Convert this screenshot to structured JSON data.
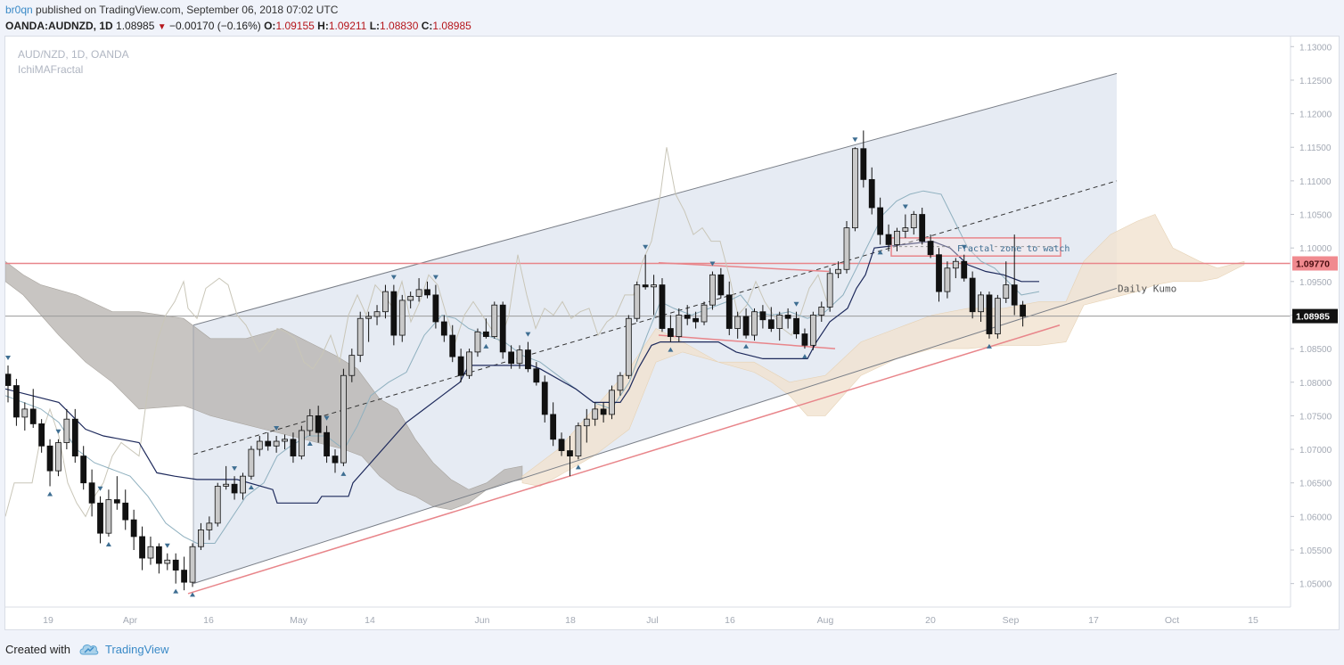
{
  "header": {
    "author": "br0qn",
    "published_text": " published on TradingView.com, September 06, 2018 07:02 UTC",
    "symbol": "OANDA:AUDNZD, 1D",
    "last": "1.08985",
    "change": "−0.00170 (−0.16%)",
    "open_label": "O:",
    "open": "1.09155",
    "high_label": "H:",
    "high": "1.09211",
    "low_label": "L:",
    "low": "1.08830",
    "close_label": "C:",
    "close": "1.08985"
  },
  "chart_overlay": {
    "symbol_line": "AUD/NZD, 1D, OANDA",
    "indicator_line": "IchiMAFractal"
  },
  "footer": {
    "created_with": "Created with",
    "brand": "TradingView"
  },
  "colors": {
    "up_candle": "#c9c9c9",
    "down_candle": "#111111",
    "channel_fill": "#e6ebf3",
    "kumo_bear": "#b5b2ad",
    "kumo_bull": "#f1e2cf",
    "red_line": "#e8858a",
    "tenkan": "#8fb0bf",
    "kijun": "#1e2a5c",
    "chikou": "#c9c6b8",
    "fractal": "#3e6e92"
  },
  "chart_data": {
    "type": "candlestick",
    "title": "AUD/NZD, 1D, OANDA",
    "price_axis": {
      "ticks": [
        "1.13000",
        "1.12500",
        "1.12000",
        "1.11500",
        "1.11000",
        "1.10500",
        "1.10000",
        "1.09500",
        "1.09000",
        "1.08500",
        "1.08000",
        "1.07500",
        "1.07000",
        "1.06500",
        "1.06000",
        "1.05500",
        "1.05000"
      ],
      "range": [
        1.0465,
        1.1315
      ]
    },
    "time_axis": {
      "ticks": [
        "19",
        "Apr",
        "16",
        "May",
        "14",
        "Jun",
        "18",
        "Jul",
        "16",
        "Aug",
        "20",
        "Sep",
        "17",
        "Oct",
        "15"
      ]
    },
    "price_labels": [
      {
        "value": "1.09770",
        "style": "red"
      },
      {
        "value": "1.08985",
        "style": "dark"
      }
    ],
    "horizontal_lines": [
      1.0977,
      1.08985
    ],
    "annotations": [
      {
        "text": "Fractal zone to watch"
      },
      {
        "text": "Daily Kumo"
      }
    ],
    "candles": [
      [
        1.0812,
        1.0825,
        1.077,
        1.0795
      ],
      [
        1.0795,
        1.0805,
        1.0735,
        1.0748
      ],
      [
        1.0748,
        1.077,
        1.0728,
        1.076
      ],
      [
        1.076,
        1.079,
        1.0732,
        1.0738
      ],
      [
        1.0738,
        1.0745,
        1.0695,
        1.0705
      ],
      [
        1.0705,
        1.0715,
        1.0645,
        1.0668
      ],
      [
        1.0668,
        1.0715,
        1.066,
        1.071
      ],
      [
        1.071,
        1.076,
        1.07,
        1.0745
      ],
      [
        1.0745,
        1.076,
        1.068,
        1.069
      ],
      [
        1.069,
        1.0705,
        1.064,
        1.065
      ],
      [
        1.065,
        1.067,
        1.06,
        1.062
      ],
      [
        1.062,
        1.063,
        1.056,
        1.0575
      ],
      [
        1.0575,
        1.064,
        1.057,
        1.0625
      ],
      [
        1.0625,
        1.066,
        1.061,
        1.062
      ],
      [
        1.062,
        1.064,
        1.058,
        1.0595
      ],
      [
        1.0595,
        1.061,
        1.055,
        1.057
      ],
      [
        1.057,
        1.0585,
        1.052,
        1.0538
      ],
      [
        1.0538,
        1.057,
        1.0528,
        1.0555
      ],
      [
        1.0555,
        1.056,
        1.0515,
        1.053
      ],
      [
        1.053,
        1.0545,
        1.052,
        1.0535
      ],
      [
        1.0535,
        1.0545,
        1.05,
        1.052
      ],
      [
        1.052,
        1.054,
        1.049,
        1.0502
      ],
      [
        1.0502,
        1.056,
        1.0495,
        1.0555
      ],
      [
        1.0555,
        1.059,
        1.055,
        1.058
      ],
      [
        1.058,
        1.06,
        1.0565,
        1.059
      ],
      [
        1.059,
        1.065,
        1.0585,
        1.0645
      ],
      [
        1.0645,
        1.0675,
        1.064,
        1.0648
      ],
      [
        1.0648,
        1.066,
        1.0625,
        1.0635
      ],
      [
        1.0635,
        1.0665,
        1.0625,
        1.066
      ],
      [
        1.066,
        1.0705,
        1.0655,
        1.07
      ],
      [
        1.07,
        1.072,
        1.069,
        1.0712
      ],
      [
        1.0712,
        1.0725,
        1.0698,
        1.0705
      ],
      [
        1.0705,
        1.072,
        1.0695,
        1.0712
      ],
      [
        1.0712,
        1.0722,
        1.07,
        1.0715
      ],
      [
        1.0715,
        1.0725,
        1.068,
        1.069
      ],
      [
        1.069,
        1.0735,
        1.0685,
        1.0728
      ],
      [
        1.0728,
        1.076,
        1.072,
        1.075
      ],
      [
        1.075,
        1.0765,
        1.071,
        1.0725
      ],
      [
        1.0725,
        1.0735,
        1.068,
        1.069
      ],
      [
        1.069,
        1.07,
        1.0665,
        1.068
      ],
      [
        1.068,
        1.082,
        1.0675,
        1.081
      ],
      [
        1.081,
        1.085,
        1.08,
        1.084
      ],
      [
        1.084,
        1.0905,
        1.083,
        1.0895
      ],
      [
        1.0895,
        1.0905,
        1.086,
        1.0898
      ],
      [
        1.0898,
        1.0915,
        1.0885,
        1.0905
      ],
      [
        1.0905,
        1.0945,
        1.0895,
        1.0935
      ],
      [
        1.0935,
        1.0945,
        1.0855,
        1.087
      ],
      [
        1.087,
        1.093,
        1.086,
        1.0922
      ],
      [
        1.0922,
        1.0935,
        1.091,
        1.0928
      ],
      [
        1.0928,
        1.0955,
        1.092,
        1.0938
      ],
      [
        1.0938,
        1.095,
        1.0925,
        1.093
      ],
      [
        1.093,
        1.0945,
        1.088,
        1.089
      ],
      [
        1.089,
        1.09,
        1.086,
        1.087
      ],
      [
        1.087,
        1.0885,
        1.083,
        1.0838
      ],
      [
        1.0838,
        1.085,
        1.08,
        1.081
      ],
      [
        1.081,
        1.085,
        1.0805,
        1.0845
      ],
      [
        1.0845,
        1.088,
        1.0838,
        1.0875
      ],
      [
        1.0875,
        1.0895,
        1.0865,
        1.0868
      ],
      [
        1.0868,
        1.092,
        1.0865,
        1.0915
      ],
      [
        1.0915,
        1.092,
        1.0835,
        1.0845
      ],
      [
        1.0845,
        1.0855,
        1.082,
        1.0828
      ],
      [
        1.0828,
        1.0855,
        1.082,
        1.0848
      ],
      [
        1.0848,
        1.086,
        1.0815,
        1.082
      ],
      [
        1.082,
        1.083,
        1.0795,
        1.08
      ],
      [
        1.08,
        1.081,
        1.074,
        1.0752
      ],
      [
        1.0752,
        1.077,
        1.0705,
        1.0715
      ],
      [
        1.0715,
        1.0725,
        1.069,
        1.0698
      ],
      [
        1.0698,
        1.072,
        1.066,
        1.069
      ],
      [
        1.069,
        1.074,
        1.0685,
        1.0735
      ],
      [
        1.0735,
        1.076,
        1.071,
        1.0745
      ],
      [
        1.0745,
        1.077,
        1.0735,
        1.076
      ],
      [
        1.076,
        1.077,
        1.074,
        1.0752
      ],
      [
        1.0752,
        1.0795,
        1.0745,
        1.0788
      ],
      [
        1.0788,
        1.0815,
        1.078,
        1.081
      ],
      [
        1.081,
        1.09,
        1.0805,
        1.0895
      ],
      [
        1.0895,
        1.095,
        1.089,
        1.0945
      ],
      [
        1.0945,
        1.099,
        1.0938,
        1.0942
      ],
      [
        1.0942,
        1.096,
        1.09,
        1.0945
      ],
      [
        1.0945,
        1.0955,
        1.0875,
        1.088
      ],
      [
        1.088,
        1.09,
        1.086,
        1.0868
      ],
      [
        1.0868,
        1.091,
        1.086,
        1.09
      ],
      [
        1.09,
        1.0915,
        1.0885,
        1.0895
      ],
      [
        1.0895,
        1.0905,
        1.088,
        1.089
      ],
      [
        1.089,
        1.092,
        1.0885,
        1.0915
      ],
      [
        1.0915,
        1.0965,
        1.0908,
        1.096
      ],
      [
        1.096,
        1.097,
        1.0925,
        1.093
      ],
      [
        1.093,
        1.095,
        1.087,
        1.088
      ],
      [
        1.088,
        1.0905,
        1.0865,
        1.0898
      ],
      [
        1.0898,
        1.091,
        1.0865,
        1.087
      ],
      [
        1.087,
        1.091,
        1.0862,
        1.0905
      ],
      [
        1.0905,
        1.0915,
        1.088,
        1.0893
      ],
      [
        1.0893,
        1.0912,
        1.0875,
        1.088
      ],
      [
        1.088,
        1.0905,
        1.0862,
        1.09
      ],
      [
        1.09,
        1.091,
        1.088,
        1.0895
      ],
      [
        1.0895,
        1.0905,
        1.0865,
        1.0872
      ],
      [
        1.0872,
        1.088,
        1.085,
        1.0855
      ],
      [
        1.0855,
        1.0905,
        1.0848,
        1.09
      ],
      [
        1.09,
        1.092,
        1.089,
        1.0912
      ],
      [
        1.0912,
        1.097,
        1.0905,
        1.0962
      ],
      [
        1.0962,
        1.098,
        1.0955,
        1.0968
      ],
      [
        1.0968,
        1.104,
        1.0962,
        1.103
      ],
      [
        1.103,
        1.115,
        1.1025,
        1.1148
      ],
      [
        1.1148,
        1.1175,
        1.109,
        1.1102
      ],
      [
        1.1102,
        1.112,
        1.105,
        1.106
      ],
      [
        1.106,
        1.1075,
        1.1005,
        1.102
      ],
      [
        1.102,
        1.1035,
        1.0995,
        1.1005
      ],
      [
        1.1005,
        1.103,
        1.0995,
        1.1025
      ],
      [
        1.1025,
        1.105,
        1.1015,
        1.103
      ],
      [
        1.103,
        1.1055,
        1.102,
        1.105
      ],
      [
        1.105,
        1.106,
        1.1005,
        1.101
      ],
      [
        1.101,
        1.102,
        1.0985,
        1.099
      ],
      [
        1.099,
        1.1,
        1.092,
        1.0935
      ],
      [
        1.0935,
        1.098,
        1.0925,
        1.097
      ],
      [
        1.097,
        1.0985,
        1.0955,
        1.098
      ],
      [
        1.098,
        1.099,
        1.095,
        1.0955
      ],
      [
        1.0955,
        1.0965,
        1.0895,
        1.0905
      ],
      [
        1.0905,
        1.0935,
        1.089,
        1.093
      ],
      [
        1.093,
        1.0935,
        1.0865,
        1.0872
      ],
      [
        1.0872,
        1.093,
        1.0865,
        1.0925
      ],
      [
        1.0925,
        1.098,
        1.0918,
        1.0945
      ],
      [
        1.0945,
        1.102,
        1.09,
        1.0915
      ],
      [
        1.0915,
        1.0921,
        1.0883,
        1.0898
      ]
    ]
  }
}
